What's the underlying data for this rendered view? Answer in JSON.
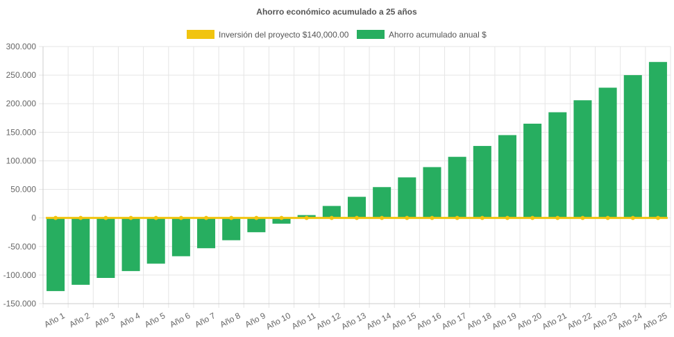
{
  "chart_data": {
    "type": "bar",
    "title": "Ahorro económico acumulado a 25 años",
    "xlabel": "",
    "ylabel": "",
    "categories": [
      "Año 1",
      "Año 2",
      "Año 3",
      "Año 4",
      "Año 5",
      "Año 6",
      "Año 7",
      "Año 8",
      "Año 9",
      "Año 10",
      "Año 11",
      "Año 12",
      "Año 13",
      "Año 14",
      "Año 15",
      "Año 16",
      "Año 17",
      "Año 18",
      "Año 19",
      "Año 20",
      "Año 21",
      "Año 22",
      "Año 23",
      "Año 24",
      "Año 25"
    ],
    "y_ticks": [
      "300.000",
      "250.000",
      "200.000",
      "150.000",
      "100.000",
      "50.000",
      "0",
      "-50.000",
      "-100.000",
      "-150.000"
    ],
    "ylim": [
      -150000,
      300000
    ],
    "grid": true,
    "legend_position": "top",
    "series": [
      {
        "name": "Inversión del proyecto $140,000.00",
        "type": "line",
        "color": "#f1c40f",
        "values": [
          0,
          0,
          0,
          0,
          0,
          0,
          0,
          0,
          0,
          0,
          0,
          0,
          0,
          0,
          0,
          0,
          0,
          0,
          0,
          0,
          0,
          0,
          0,
          0,
          0
        ]
      },
      {
        "name": "Ahorro acumulado anual $",
        "type": "bar",
        "color": "#27ae60",
        "values": [
          -128000,
          -117000,
          -105000,
          -93000,
          -80000,
          -67000,
          -53000,
          -39000,
          -25000,
          -10000,
          5000,
          21000,
          37000,
          54000,
          71000,
          89000,
          107000,
          126000,
          145000,
          165000,
          185000,
          206000,
          228000,
          250000,
          273000
        ]
      }
    ]
  }
}
